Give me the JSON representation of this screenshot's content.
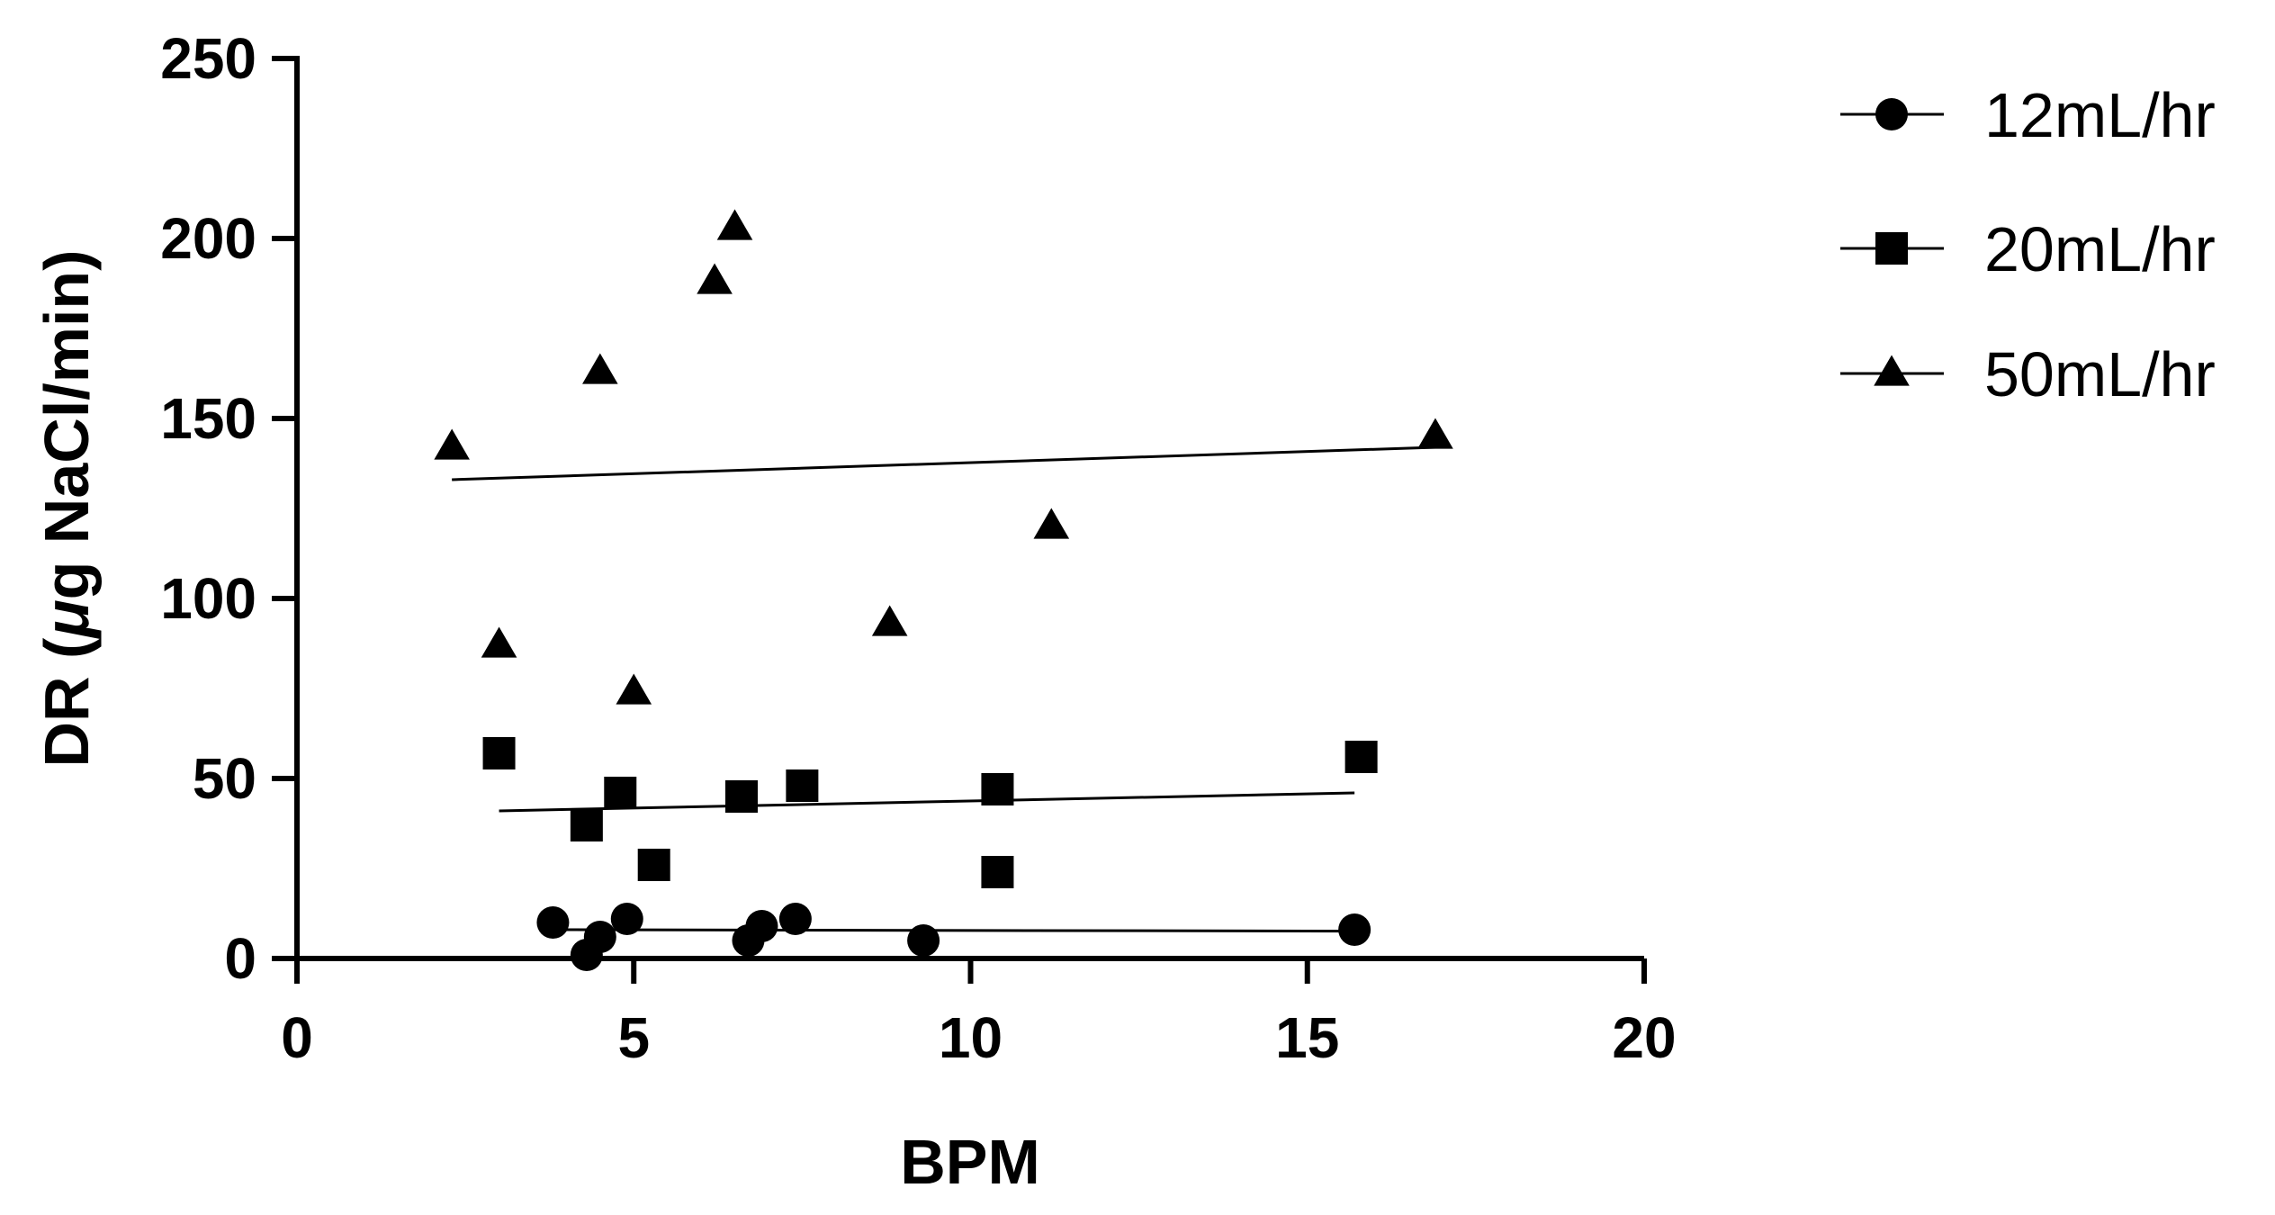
{
  "chart_data": {
    "type": "scatter",
    "xlabel": "BPM",
    "ylabel_prefix": "DR (",
    "ylabel_mu": "μ",
    "ylabel_suffix": "g NaCl/min)",
    "xlim": [
      0,
      20
    ],
    "ylim": [
      0,
      250
    ],
    "xticks": [
      0,
      5,
      10,
      15,
      20
    ],
    "yticks": [
      0,
      50,
      100,
      150,
      200,
      250
    ],
    "grid": false,
    "legend_position": "top-right",
    "series": [
      {
        "name": "12mL/hr",
        "marker": "circle",
        "color": "#000000",
        "points": [
          [
            3.8,
            10
          ],
          [
            4.3,
            1
          ],
          [
            4.5,
            6
          ],
          [
            4.9,
            11
          ],
          [
            6.7,
            5
          ],
          [
            6.9,
            9
          ],
          [
            7.4,
            11
          ],
          [
            9.3,
            5
          ],
          [
            15.7,
            8
          ]
        ],
        "trendline": {
          "x": [
            3.8,
            15.7
          ],
          "y": [
            8.0,
            7.6
          ]
        }
      },
      {
        "name": "20mL/hr",
        "marker": "square",
        "color": "#000000",
        "points": [
          [
            3.0,
            57
          ],
          [
            4.3,
            37
          ],
          [
            4.8,
            46
          ],
          [
            5.3,
            26
          ],
          [
            6.6,
            45
          ],
          [
            7.5,
            48
          ],
          [
            10.4,
            47
          ],
          [
            10.4,
            24
          ],
          [
            15.8,
            56
          ]
        ],
        "trendline": {
          "x": [
            3.0,
            15.7
          ],
          "y": [
            41,
            46
          ]
        }
      },
      {
        "name": "50mL/hr",
        "marker": "triangle",
        "color": "#000000",
        "points": [
          [
            2.3,
            142
          ],
          [
            3.0,
            87
          ],
          [
            4.5,
            163
          ],
          [
            5.0,
            74
          ],
          [
            6.2,
            188
          ],
          [
            6.5,
            203
          ],
          [
            8.8,
            93
          ],
          [
            11.2,
            120
          ],
          [
            16.9,
            145
          ]
        ],
        "trendline": {
          "x": [
            2.3,
            16.9
          ],
          "y": [
            133,
            142
          ]
        }
      }
    ]
  }
}
